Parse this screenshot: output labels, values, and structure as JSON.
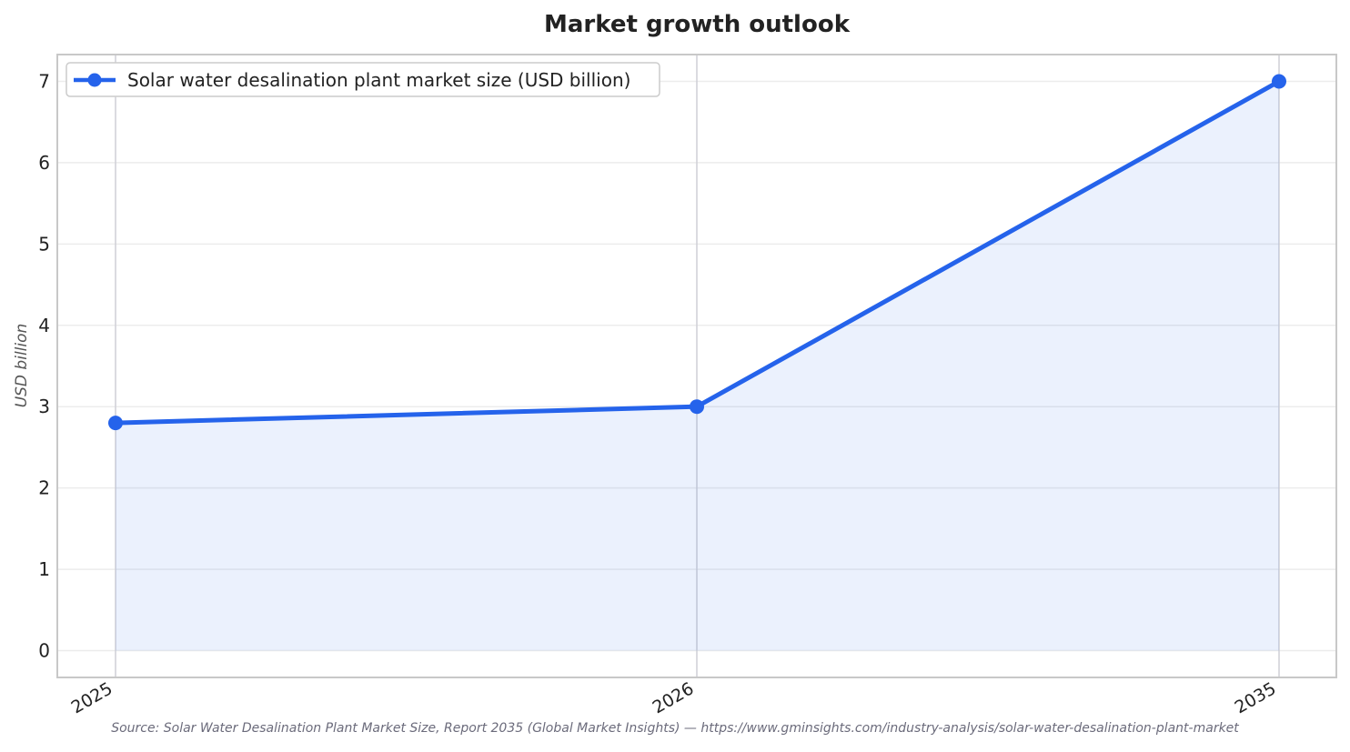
{
  "chart_data": {
    "type": "area",
    "title": "Market growth outlook",
    "xlabel": "",
    "ylabel": "USD billion",
    "categories": [
      "2025",
      "2026",
      "2035"
    ],
    "series": [
      {
        "name": "Solar water desalination plant market size (USD billion)",
        "values": [
          2.8,
          3.0,
          7.0
        ],
        "color": "#2563eb",
        "marker": "circle",
        "fill": "light blue area under line"
      }
    ],
    "ylim": [
      -0.33,
      7.33
    ],
    "yticks": [
      0,
      1,
      2,
      3,
      4,
      5,
      6,
      7
    ],
    "grid": true,
    "legend_position": "top-left",
    "x_tick_rotation": "rotated",
    "source": "Source: Solar Water Desalination Plant Market Size, Report 2035 (Global Market Insights) — https://www.gminsights.com/industry-analysis/solar-water-desalination-plant-market"
  }
}
